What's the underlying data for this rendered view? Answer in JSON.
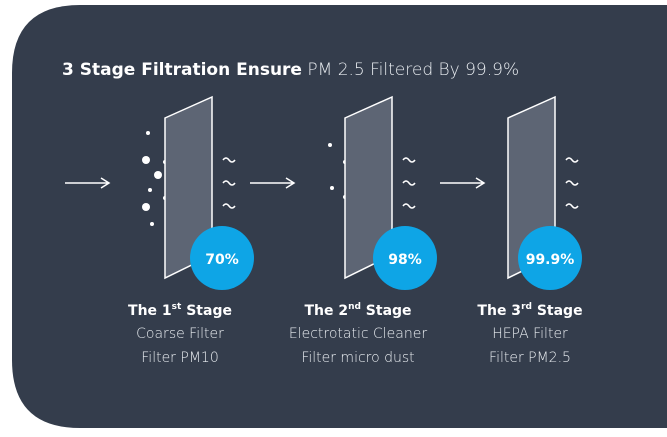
{
  "title": {
    "bold": "3 Stage Filtration Ensure",
    "light": "PM 2.5 Filtered By 99.9%"
  },
  "stages": [
    {
      "percent": "70%",
      "title_prefix": "The 1",
      "title_sup": "st",
      "title_suffix": "Stage",
      "line1": "Coarse Filter",
      "line2": "Filter PM10"
    },
    {
      "percent": "98%",
      "title_prefix": "The 2",
      "title_sup": "nd",
      "title_suffix": "Stage",
      "line1": "Electrotatic Cleaner",
      "line2": "Filter micro dust"
    },
    {
      "percent": "99.9%",
      "title_prefix": "The 3",
      "title_sup": "rd",
      "title_suffix": "Stage",
      "line1": "HEPA Filter",
      "line2": "Filter PM2.5"
    }
  ]
}
